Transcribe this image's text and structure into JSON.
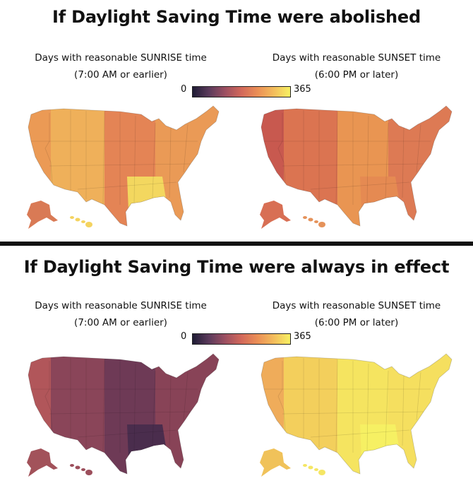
{
  "top_section": {
    "title": "If Daylight Saving Time were abolished",
    "left_panel": {
      "line1": "Days with reasonable SUNRISE time",
      "line2": "(7:00 AM or earlier)"
    },
    "right_panel": {
      "line1": "Days with reasonable SUNSET time",
      "line2": "(6:00 PM or later)"
    },
    "legend": {
      "min": "0",
      "max": "365"
    }
  },
  "bottom_section": {
    "title": "If Daylight Saving Time were always in effect",
    "left_panel": {
      "line1": "Days with reasonable SUNRISE time",
      "line2": "(7:00 AM or earlier)"
    },
    "right_panel": {
      "line1": "Days with reasonable SUNSET time",
      "line2": "(6:00 PM or later)"
    },
    "legend": {
      "min": "0",
      "max": "365"
    }
  },
  "colors": {
    "scale": [
      "#1f1c35",
      "#5b3a5b",
      "#9c4f61",
      "#d2685a",
      "#eb8f56",
      "#f3bd5c",
      "#f6f063"
    ],
    "background": "#ffffff",
    "divider": "#111111"
  },
  "maps": {
    "abolished_sunrise": {
      "pacific": "#eb9a55",
      "mountain": "#efb05a",
      "central": "#e48455",
      "eastern": "#ea9a56",
      "alaska": "#d97a55",
      "hawaii": "#f4d35f",
      "gulf": "#f3d75f"
    },
    "abolished_sunset": {
      "pacific": "#c8594f",
      "mountain": "#db7451",
      "central": "#e99552",
      "eastern": "#dd7a54",
      "alaska": "#d86f54",
      "hawaii": "#e5925a",
      "gulf": "#e58a52"
    },
    "permanent_sunrise": {
      "pacific": "#b1565a",
      "mountain": "#8a4559",
      "central": "#6e3a56",
      "eastern": "#884357",
      "alaska": "#a2525a",
      "hawaii": "#9c4e5b",
      "gulf": "#4a2d4d"
    },
    "permanent_sunset": {
      "pacific": "#efac5a",
      "mountain": "#f3cf5c",
      "central": "#f5e460",
      "eastern": "#f5df5f",
      "alaska": "#f0c25a",
      "hawaii": "#f5e664",
      "gulf": "#f6f063"
    }
  }
}
